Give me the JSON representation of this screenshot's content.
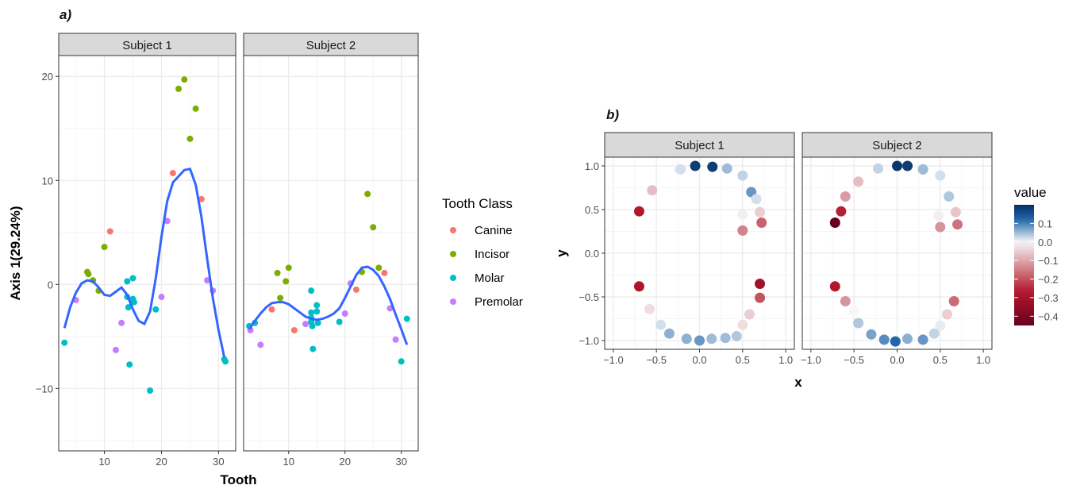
{
  "chart_data": [
    {
      "panel_label": "a)",
      "type": "scatter",
      "xlabel": "Tooth",
      "ylabel": "Axis 1(29.24%)",
      "xlim": [
        2,
        33
      ],
      "ylim": [
        -16,
        22
      ],
      "xticks": [
        10,
        20,
        30
      ],
      "yticks": [
        -10,
        0,
        10,
        20
      ],
      "grid": true,
      "smooth_color": "#3366FF",
      "legend": {
        "title": "Tooth Class",
        "position": "right",
        "entries": [
          {
            "name": "Canine",
            "color": "#F8766D"
          },
          {
            "name": "Incisor",
            "color": "#7CAE00"
          },
          {
            "name": "Molar",
            "color": "#00BFC4"
          },
          {
            "name": "Premolar",
            "color": "#C77CFF"
          }
        ]
      },
      "facets": [
        {
          "strip": "Subject 1",
          "points": [
            {
              "x": 3,
              "y": -5.6,
              "class": "Molar"
            },
            {
              "x": 5,
              "y": -1.5,
              "class": "Premolar"
            },
            {
              "x": 7,
              "y": 1.2,
              "class": "Incisor"
            },
            {
              "x": 7.2,
              "y": 1.0,
              "class": "Incisor"
            },
            {
              "x": 8,
              "y": 0.4,
              "class": "Incisor"
            },
            {
              "x": 9,
              "y": -0.6,
              "class": "Incisor"
            },
            {
              "x": 10,
              "y": 3.6,
              "class": "Incisor"
            },
            {
              "x": 11,
              "y": 5.1,
              "class": "Canine"
            },
            {
              "x": 12,
              "y": -6.3,
              "class": "Premolar"
            },
            {
              "x": 13,
              "y": -3.7,
              "class": "Premolar"
            },
            {
              "x": 14,
              "y": 0.3,
              "class": "Molar"
            },
            {
              "x": 14,
              "y": -1.2,
              "class": "Molar"
            },
            {
              "x": 14.2,
              "y": -2.2,
              "class": "Molar"
            },
            {
              "x": 14.4,
              "y": -7.7,
              "class": "Molar"
            },
            {
              "x": 15,
              "y": 0.6,
              "class": "Molar"
            },
            {
              "x": 15,
              "y": -1.4,
              "class": "Molar"
            },
            {
              "x": 15.2,
              "y": -1.7,
              "class": "Molar"
            },
            {
              "x": 18,
              "y": -10.2,
              "class": "Molar"
            },
            {
              "x": 19,
              "y": -2.4,
              "class": "Molar"
            },
            {
              "x": 20,
              "y": -1.2,
              "class": "Premolar"
            },
            {
              "x": 21,
              "y": 6.1,
              "class": "Premolar"
            },
            {
              "x": 22,
              "y": 10.7,
              "class": "Canine"
            },
            {
              "x": 23,
              "y": 18.8,
              "class": "Incisor"
            },
            {
              "x": 24,
              "y": 19.7,
              "class": "Incisor"
            },
            {
              "x": 25,
              "y": 14.0,
              "class": "Incisor"
            },
            {
              "x": 26,
              "y": 16.9,
              "class": "Incisor"
            },
            {
              "x": 27,
              "y": 8.2,
              "class": "Canine"
            },
            {
              "x": 28,
              "y": 0.4,
              "class": "Premolar"
            },
            {
              "x": 29,
              "y": -0.6,
              "class": "Premolar"
            },
            {
              "x": 31,
              "y": -7.2,
              "class": "Molar"
            },
            {
              "x": 31.2,
              "y": -7.4,
              "class": "Molar"
            }
          ],
          "smooth": [
            [
              3,
              -4.2
            ],
            [
              4,
              -2.2
            ],
            [
              5,
              -0.8
            ],
            [
              6,
              0.1
            ],
            [
              7,
              0.4
            ],
            [
              8,
              0.3
            ],
            [
              9,
              -0.3
            ],
            [
              10,
              -1.0
            ],
            [
              11,
              -1.1
            ],
            [
              12,
              -0.7
            ],
            [
              13,
              -0.3
            ],
            [
              14,
              -1.0
            ],
            [
              15,
              -2.4
            ],
            [
              16,
              -3.5
            ],
            [
              17,
              -3.8
            ],
            [
              18,
              -2.6
            ],
            [
              19,
              0.6
            ],
            [
              20,
              4.6
            ],
            [
              21,
              8.0
            ],
            [
              22,
              9.8
            ],
            [
              23,
              10.4
            ],
            [
              24,
              11.0
            ],
            [
              25,
              11.1
            ],
            [
              26,
              9.6
            ],
            [
              27,
              6.5
            ],
            [
              28,
              2.5
            ],
            [
              29,
              -1.3
            ],
            [
              30,
              -4.4
            ],
            [
              31,
              -7.0
            ]
          ]
        },
        {
          "strip": "Subject 2",
          "points": [
            {
              "x": 3,
              "y": -4.0,
              "class": "Molar"
            },
            {
              "x": 3.2,
              "y": -4.4,
              "class": "Premolar"
            },
            {
              "x": 4,
              "y": -3.7,
              "class": "Molar"
            },
            {
              "x": 5,
              "y": -5.8,
              "class": "Premolar"
            },
            {
              "x": 7,
              "y": -2.4,
              "class": "Canine"
            },
            {
              "x": 8,
              "y": 1.1,
              "class": "Incisor"
            },
            {
              "x": 8.5,
              "y": -1.3,
              "class": "Incisor"
            },
            {
              "x": 9.5,
              "y": 0.3,
              "class": "Incisor"
            },
            {
              "x": 10,
              "y": 1.6,
              "class": "Incisor"
            },
            {
              "x": 11,
              "y": -4.4,
              "class": "Canine"
            },
            {
              "x": 13,
              "y": -3.8,
              "class": "Premolar"
            },
            {
              "x": 14,
              "y": -0.6,
              "class": "Molar"
            },
            {
              "x": 14,
              "y": -2.7,
              "class": "Molar"
            },
            {
              "x": 14,
              "y": -3.2,
              "class": "Molar"
            },
            {
              "x": 14,
              "y": -3.6,
              "class": "Molar"
            },
            {
              "x": 14.2,
              "y": -4.0,
              "class": "Molar"
            },
            {
              "x": 14.3,
              "y": -6.2,
              "class": "Molar"
            },
            {
              "x": 15,
              "y": -2.0,
              "class": "Molar"
            },
            {
              "x": 15,
              "y": -2.6,
              "class": "Molar"
            },
            {
              "x": 15.2,
              "y": -3.7,
              "class": "Molar"
            },
            {
              "x": 19,
              "y": -3.6,
              "class": "Molar"
            },
            {
              "x": 20,
              "y": -2.8,
              "class": "Premolar"
            },
            {
              "x": 21,
              "y": 0.1,
              "class": "Premolar"
            },
            {
              "x": 22,
              "y": -0.5,
              "class": "Canine"
            },
            {
              "x": 23,
              "y": 1.2,
              "class": "Incisor"
            },
            {
              "x": 24,
              "y": 8.7,
              "class": "Incisor"
            },
            {
              "x": 25,
              "y": 5.5,
              "class": "Incisor"
            },
            {
              "x": 26,
              "y": 1.6,
              "class": "Incisor"
            },
            {
              "x": 27,
              "y": 1.1,
              "class": "Canine"
            },
            {
              "x": 28,
              "y": -2.3,
              "class": "Premolar"
            },
            {
              "x": 29,
              "y": -5.3,
              "class": "Premolar"
            },
            {
              "x": 30,
              "y": -7.4,
              "class": "Molar"
            },
            {
              "x": 31,
              "y": -3.3,
              "class": "Molar"
            }
          ],
          "smooth": [
            [
              3,
              -4.3
            ],
            [
              4,
              -3.5
            ],
            [
              5,
              -2.8
            ],
            [
              6,
              -2.2
            ],
            [
              7,
              -1.8
            ],
            [
              8,
              -1.7
            ],
            [
              9,
              -1.7
            ],
            [
              10,
              -1.9
            ],
            [
              11,
              -2.3
            ],
            [
              12,
              -2.7
            ],
            [
              13,
              -3.1
            ],
            [
              14,
              -3.3
            ],
            [
              15,
              -3.4
            ],
            [
              16,
              -3.3
            ],
            [
              17,
              -3.1
            ],
            [
              18,
              -2.8
            ],
            [
              19,
              -2.3
            ],
            [
              20,
              -1.3
            ],
            [
              21,
              -0.2
            ],
            [
              22,
              0.9
            ],
            [
              23,
              1.6
            ],
            [
              24,
              1.7
            ],
            [
              25,
              1.4
            ],
            [
              26,
              0.8
            ],
            [
              27,
              -0.2
            ],
            [
              28,
              -1.4
            ],
            [
              29,
              -2.9
            ],
            [
              30,
              -4.3
            ],
            [
              31,
              -5.8
            ]
          ]
        }
      ]
    },
    {
      "panel_label": "b)",
      "type": "scatter",
      "xlabel": "x",
      "ylabel": "y",
      "xlim": [
        -1.1,
        1.1
      ],
      "ylim": [
        -1.1,
        1.1
      ],
      "xticks": [
        -1.0,
        -0.5,
        0.0,
        0.5,
        1.0
      ],
      "xtick_labels": [
        "−1.0",
        "−0.5",
        "0.0",
        "0.5",
        "1.0"
      ],
      "yticks": [
        -1.0,
        -0.5,
        0.0,
        0.5,
        1.0
      ],
      "ytick_labels": [
        "−1.0",
        "−0.5",
        "0.0",
        "0.5",
        "1.0"
      ],
      "grid": true,
      "legend": {
        "title": "value",
        "position": "right",
        "range": [
          -0.45,
          0.2
        ],
        "ticks": [
          0.1,
          0.0,
          -0.1,
          -0.2,
          -0.3,
          -0.4
        ],
        "tick_labels": [
          "0.1",
          "0.0",
          "−0.1",
          "−0.2",
          "−0.3",
          "−0.4"
        ],
        "low_color": "#67001F",
        "mid_color": "#F7F7F7",
        "high_color": "#053061"
      },
      "facets": [
        {
          "strip": "Subject 1",
          "points": [
            {
              "x": -0.25,
              "y": 0.97,
              "v": 0.0
            },
            {
              "x": -0.22,
              "y": 0.96,
              "v": 0.02
            },
            {
              "x": -0.05,
              "y": 1.0,
              "v": 0.18
            },
            {
              "x": 0.15,
              "y": 0.99,
              "v": 0.18
            },
            {
              "x": 0.32,
              "y": 0.97,
              "v": 0.05
            },
            {
              "x": 0.5,
              "y": 0.89,
              "v": 0.03
            },
            {
              "x": 0.6,
              "y": 0.7,
              "v": 0.08
            },
            {
              "x": 0.66,
              "y": 0.62,
              "v": 0.02
            },
            {
              "x": 0.5,
              "y": 0.44,
              "v": -0.01
            },
            {
              "x": 0.7,
              "y": 0.47,
              "v": -0.05
            },
            {
              "x": 0.72,
              "y": 0.35,
              "v": -0.18
            },
            {
              "x": 0.5,
              "y": 0.26,
              "v": -0.14
            },
            {
              "x": -0.55,
              "y": 0.72,
              "v": -0.07
            },
            {
              "x": -0.7,
              "y": 0.48,
              "v": -0.27
            },
            {
              "x": -0.7,
              "y": -0.38,
              "v": -0.28
            },
            {
              "x": -0.58,
              "y": -0.64,
              "v": -0.03
            },
            {
              "x": -0.45,
              "y": -0.82,
              "v": 0.02
            },
            {
              "x": -0.35,
              "y": -0.92,
              "v": 0.06
            },
            {
              "x": -0.15,
              "y": -0.98,
              "v": 0.06
            },
            {
              "x": 0.0,
              "y": -1.0,
              "v": 0.08
            },
            {
              "x": 0.14,
              "y": -0.98,
              "v": 0.05
            },
            {
              "x": 0.3,
              "y": -0.97,
              "v": 0.05
            },
            {
              "x": 0.43,
              "y": -0.95,
              "v": 0.04
            },
            {
              "x": 0.5,
              "y": -0.82,
              "v": -0.03
            },
            {
              "x": 0.58,
              "y": -0.7,
              "v": -0.05
            },
            {
              "x": 0.7,
              "y": -0.35,
              "v": -0.31
            },
            {
              "x": 0.7,
              "y": -0.51,
              "v": -0.2
            }
          ]
        },
        {
          "strip": "Subject 2",
          "points": [
            {
              "x": -0.22,
              "y": 0.97,
              "v": 0.03
            },
            {
              "x": 0.0,
              "y": 1.0,
              "v": 0.19
            },
            {
              "x": 0.12,
              "y": 1.0,
              "v": 0.18
            },
            {
              "x": 0.3,
              "y": 0.96,
              "v": 0.05
            },
            {
              "x": 0.5,
              "y": 0.89,
              "v": 0.02
            },
            {
              "x": 0.6,
              "y": 0.65,
              "v": 0.04
            },
            {
              "x": 0.48,
              "y": 0.43,
              "v": -0.01
            },
            {
              "x": 0.68,
              "y": 0.47,
              "v": -0.06
            },
            {
              "x": 0.7,
              "y": 0.33,
              "v": -0.16
            },
            {
              "x": 0.5,
              "y": 0.3,
              "v": -0.12
            },
            {
              "x": -0.45,
              "y": 0.82,
              "v": -0.07
            },
            {
              "x": -0.6,
              "y": 0.65,
              "v": -0.11
            },
            {
              "x": -0.65,
              "y": 0.48,
              "v": -0.26
            },
            {
              "x": -0.72,
              "y": 0.35,
              "v": -0.45
            },
            {
              "x": -0.72,
              "y": -0.38,
              "v": -0.27
            },
            {
              "x": -0.6,
              "y": -0.55,
              "v": -0.12
            },
            {
              "x": -0.5,
              "y": -0.66,
              "v": 0.0
            },
            {
              "x": -0.45,
              "y": -0.8,
              "v": 0.04
            },
            {
              "x": -0.3,
              "y": -0.93,
              "v": 0.07
            },
            {
              "x": -0.15,
              "y": -0.99,
              "v": 0.09
            },
            {
              "x": -0.02,
              "y": -1.01,
              "v": 0.12
            },
            {
              "x": 0.12,
              "y": -0.98,
              "v": 0.06
            },
            {
              "x": 0.3,
              "y": -0.99,
              "v": 0.08
            },
            {
              "x": 0.43,
              "y": -0.92,
              "v": 0.03
            },
            {
              "x": 0.5,
              "y": -0.83,
              "v": 0.01
            },
            {
              "x": 0.58,
              "y": -0.7,
              "v": -0.05
            },
            {
              "x": 0.66,
              "y": -0.55,
              "v": -0.17
            }
          ]
        }
      ]
    }
  ]
}
